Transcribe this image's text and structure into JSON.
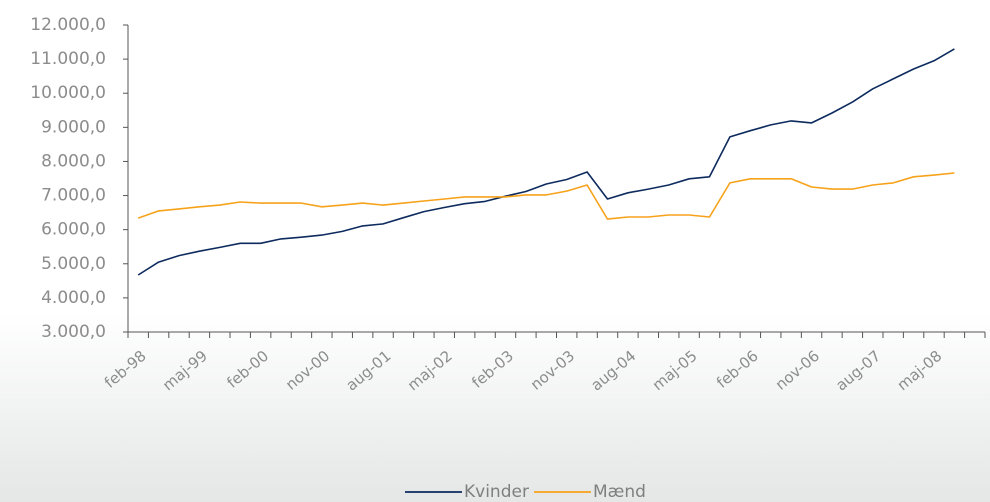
{
  "chart_data": {
    "type": "line",
    "categories": [
      "feb-98",
      null,
      null,
      "maj-99",
      null,
      null,
      "feb-00",
      null,
      null,
      "nov-00",
      null,
      null,
      "aug-01",
      null,
      null,
      "maj-02",
      null,
      null,
      "feb-03",
      null,
      null,
      "nov-03",
      null,
      null,
      "aug-04",
      null,
      null,
      "maj-05",
      null,
      null,
      "feb-06",
      null,
      null,
      "nov-06",
      null,
      null,
      "aug-07",
      null,
      null,
      "maj-08",
      null,
      null
    ],
    "series": [
      {
        "name": "Kvinder",
        "color": "#0d2b5e",
        "values": [
          4670,
          5050,
          5240,
          5370,
          5480,
          5600,
          5600,
          5730,
          5780,
          5840,
          5950,
          6110,
          6170,
          6350,
          6530,
          6650,
          6760,
          6830,
          6980,
          7120,
          7340,
          7470,
          7690,
          6900,
          7080,
          7190,
          7310,
          7490,
          7550,
          8720,
          8900,
          9070,
          9190,
          9130,
          9420,
          9740,
          10130,
          10420,
          10710,
          10950,
          11300,
          null
        ]
      },
      {
        "name": "Mænd",
        "color": "#f7a21b",
        "values": [
          6340,
          6550,
          6610,
          6670,
          6720,
          6810,
          6780,
          6780,
          6780,
          6670,
          6720,
          6780,
          6720,
          6780,
          6840,
          6900,
          6960,
          6960,
          6960,
          7020,
          7020,
          7130,
          7310,
          6310,
          6370,
          6370,
          6430,
          6430,
          6370,
          7370,
          7490,
          7490,
          7490,
          7250,
          7190,
          7190,
          7310,
          7370,
          7550,
          7600,
          7660,
          null
        ]
      }
    ],
    "ylim": [
      3000,
      12000
    ],
    "yticks": [
      {
        "value": 3000,
        "label": "3.000,0"
      },
      {
        "value": 4000,
        "label": "4.000,0"
      },
      {
        "value": 5000,
        "label": "5.000,0"
      },
      {
        "value": 6000,
        "label": "6.000,0"
      },
      {
        "value": 7000,
        "label": "7.000,0"
      },
      {
        "value": 8000,
        "label": "8.000,0"
      },
      {
        "value": 9000,
        "label": "9.000,0"
      },
      {
        "value": 10000,
        "label": "10.000,0"
      },
      {
        "value": 11000,
        "label": "11.000,0"
      },
      {
        "value": 12000,
        "label": "12.000,0"
      }
    ],
    "grid": false,
    "legend": "bottom"
  }
}
